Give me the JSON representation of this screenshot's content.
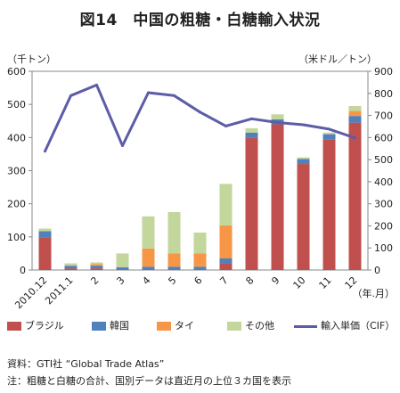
{
  "title": "図14　中国の粗糖・白糖輸入状況",
  "left_unit": "（千トン）",
  "right_unit": "（米ドル／トン）",
  "x_unit": "（年.月）",
  "source_note": "資料：GTI社 “Global Trade Atlas”",
  "footnote": "注：粗糖と白糖の合計、国別データは直近月の上位３カ国を表示",
  "chart_data": {
    "type": "bar",
    "stacked": true,
    "categories": [
      "2010.12",
      "2011.1",
      "2",
      "3",
      "4",
      "5",
      "6",
      "7",
      "8",
      "9",
      "10",
      "11",
      "12"
    ],
    "series": [
      {
        "name": "ブラジル",
        "color": "#c0504d",
        "values": [
          97,
          5,
          5,
          0,
          0,
          0,
          0,
          20,
          400,
          440,
          320,
          395,
          445
        ]
      },
      {
        "name": "韓国",
        "color": "#4f81bd",
        "values": [
          20,
          8,
          8,
          8,
          10,
          10,
          10,
          15,
          15,
          15,
          15,
          15,
          20
        ]
      },
      {
        "name": "タイ",
        "color": "#f79646",
        "values": [
          0,
          0,
          5,
          0,
          55,
          40,
          40,
          100,
          0,
          0,
          0,
          0,
          15
        ]
      },
      {
        "name": "その他",
        "color": "#c3d69b",
        "values": [
          8,
          7,
          5,
          42,
          97,
          125,
          63,
          125,
          13,
          15,
          5,
          5,
          15
        ]
      }
    ],
    "line_series": {
      "name": "輸入単価（CIF）",
      "color": "#5c5ca8",
      "axis": "right",
      "values": [
        538,
        790,
        838,
        563,
        803,
        790,
        715,
        652,
        685,
        668,
        658,
        638,
        598
      ]
    },
    "ylim": [
      0,
      600
    ],
    "yticks": [
      0,
      100,
      200,
      300,
      400,
      500,
      600
    ],
    "y2lim": [
      0,
      900
    ],
    "y2ticks": [
      0,
      100,
      200,
      300,
      400,
      500,
      600,
      700,
      800,
      900
    ],
    "legend_position": "bottom"
  }
}
